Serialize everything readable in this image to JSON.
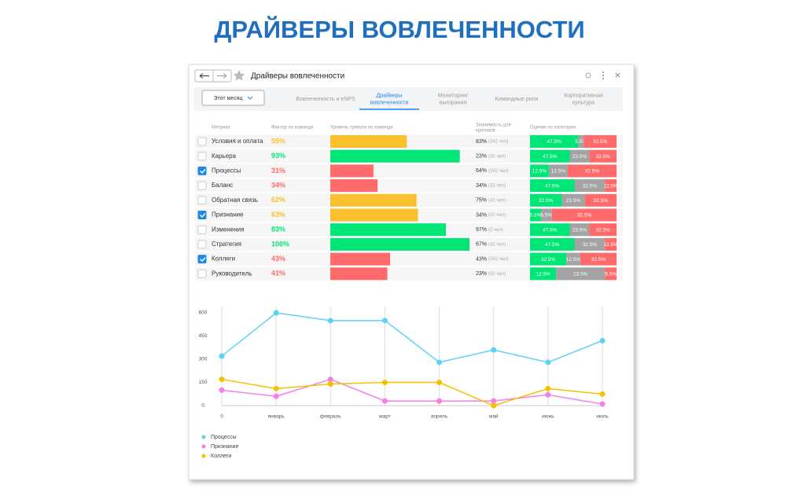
{
  "page_title": "ДРАЙВЕРЫ ВОВЛЕЧЕННОСТИ",
  "window": {
    "title": "Драйверы вовлеченности"
  },
  "toolbar": {
    "period": "Этот месяц",
    "tabs": [
      [
        "Вовлеченность и eNPS"
      ],
      [
        "Драйверы",
        "вовлеченности"
      ],
      [
        "Мониторинг",
        "выгорания"
      ],
      [
        "Командные роли"
      ],
      [
        "Корпоративная",
        "культура"
      ]
    ],
    "active_tab": 1
  },
  "table": {
    "headers": [
      "Метрика",
      "Фактор по команде",
      "Уровень тревоги по команде",
      [
        "Значимость для",
        "критиков"
      ],
      "Оценки по категория"
    ],
    "score_colors": [
      "#00e676",
      "#a3a3a3",
      "#ff6b6b"
    ],
    "rows": [
      {
        "name": "Условия и оплата",
        "checked": false,
        "factor": 55,
        "factor_label": "55%",
        "color": "#fbc02d",
        "significance": "83%",
        "people": "(342 чел)",
        "scores": [
          47.5,
          5.5,
          32.5
        ],
        "score_labels": [
          "47.5%",
          "5.5%",
          "32.5%"
        ]
      },
      {
        "name": "Карьера",
        "checked": false,
        "factor": 93,
        "factor_label": "93%",
        "color": "#00e676",
        "significance": "23%",
        "people": "(30 чел)",
        "scores": [
          47.5,
          23.5,
          32.5
        ],
        "score_labels": [
          "47.5%",
          "23.5%",
          "32.5%"
        ]
      },
      {
        "name": "Процессы",
        "checked": true,
        "factor": 31,
        "factor_label": "31%",
        "color": "#ff6b6b",
        "significance": "64%",
        "people": "(342 чел)",
        "scores": [
          12.5,
          12.5,
          32.5
        ],
        "score_labels": [
          "12.5%",
          "12.5%",
          "32.5%"
        ]
      },
      {
        "name": "Баланс",
        "checked": false,
        "factor": 34,
        "factor_label": "34%",
        "color": "#ff6b6b",
        "significance": "34%",
        "people": "(32 чел)",
        "scores": [
          47.5,
          32.5,
          12.5
        ],
        "score_labels": [
          "47.5%",
          "32.5%",
          "12.5%"
        ]
      },
      {
        "name": "Обратная связь",
        "checked": false,
        "factor": 62,
        "factor_label": "62%",
        "color": "#fbc02d",
        "significance": "75%",
        "people": "(42 чел)",
        "scores": [
          32.5,
          23.5,
          32.5
        ],
        "score_labels": [
          "32.5%",
          "23.5%",
          "32.5%"
        ]
      },
      {
        "name": "Признание",
        "checked": true,
        "factor": 63,
        "factor_label": "63%",
        "color": "#fbc02d",
        "significance": "34%",
        "people": "(32 чел)",
        "scores": [
          5.5,
          5.5,
          32.5
        ],
        "score_labels": [
          "5.5%",
          "5.5%",
          "32.5%"
        ]
      },
      {
        "name": "Изменения",
        "checked": false,
        "factor": 83,
        "factor_label": "83%",
        "color": "#00e676",
        "significance": "97%",
        "people": "(2 чел)",
        "scores": [
          47.5,
          23.5,
          32.5
        ],
        "score_labels": [
          "47.5%",
          "23.5%",
          "32.5%"
        ]
      },
      {
        "name": "Стратегия",
        "checked": false,
        "factor": 100,
        "factor_label": "100%",
        "color": "#00e676",
        "significance": "67%",
        "people": "(42 чел)",
        "scores": [
          47.5,
          32.5,
          12.5
        ],
        "score_labels": [
          "47.5%",
          "32.5%",
          "12.5%"
        ]
      },
      {
        "name": "Коллеги",
        "checked": true,
        "factor": 43,
        "factor_label": "43%",
        "color": "#ff6b6b",
        "significance": "43%",
        "people": "(342 чел)",
        "scores": [
          32.5,
          12.5,
          32.5
        ],
        "score_labels": [
          "32.5%",
          "12.5%",
          "32.5%"
        ]
      },
      {
        "name": "Руководитель",
        "checked": false,
        "factor": 41,
        "factor_label": "41%",
        "color": "#ff6b6b",
        "significance": "23%",
        "people": "(30 чел)",
        "scores": [
          12.5,
          23.5,
          5.5
        ],
        "score_labels": [
          "12.5%",
          "23.5%",
          "5.5%"
        ]
      }
    ]
  },
  "chart_data": {
    "type": "line",
    "categories": [
      "0",
      "январь",
      "февраль",
      "март",
      "апрель",
      "май",
      "июнь",
      "июль"
    ],
    "ylim": [
      0,
      600
    ],
    "yticks": [
      0,
      150,
      300,
      450,
      600
    ],
    "grid": "x",
    "series": [
      {
        "name": "Процессы",
        "color": "#5dd3f3",
        "values": [
          320,
          600,
          550,
          550,
          280,
          360,
          280,
          420
        ]
      },
      {
        "name": "Признание",
        "color": "#f47fe6",
        "values": [
          100,
          60,
          170,
          30,
          30,
          30,
          70,
          10
        ]
      },
      {
        "name": "Коллеги",
        "color": "#f5c000",
        "values": [
          170,
          110,
          140,
          150,
          150,
          0,
          110,
          75
        ]
      }
    ]
  }
}
